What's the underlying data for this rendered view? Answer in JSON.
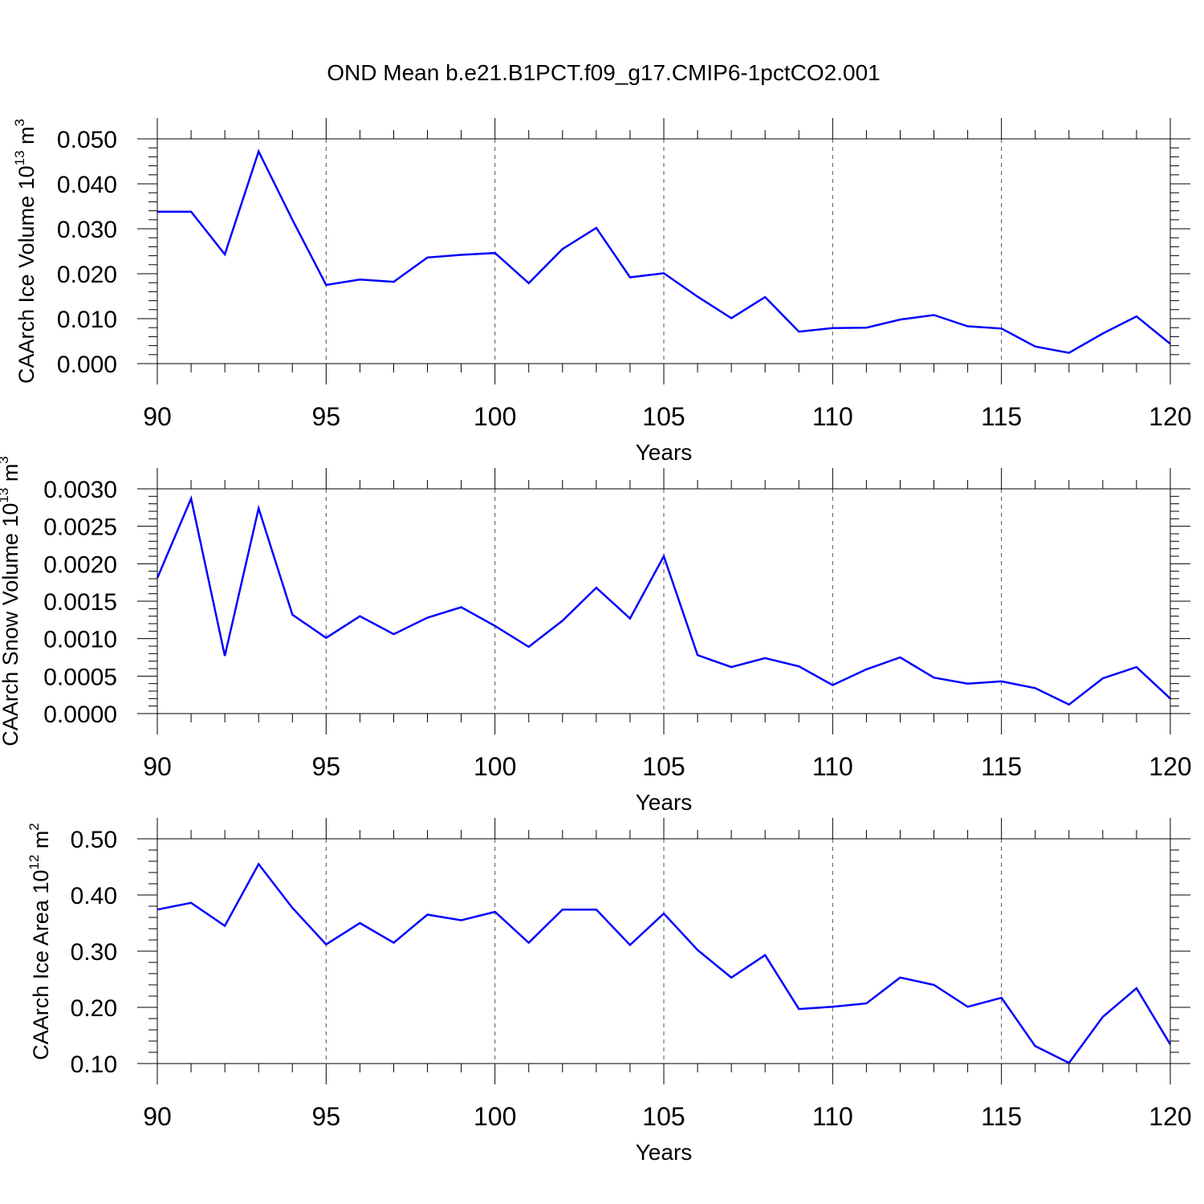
{
  "figure": {
    "title": "OND Mean b.e21.B1PCT.f09_g17.CMIP6-1pctCO2.001",
    "line_color": "#0000ff",
    "axis_color": "#000000",
    "grid_color": "#555555"
  },
  "chart_data": [
    {
      "type": "line",
      "ylabel": "CAArch Ice Volume 10",
      "ylabel_sup": "13",
      "ylabel_unit": " m",
      "ylabel_unit_sup": "3",
      "xlabel": "Years",
      "xlim": [
        90,
        120
      ],
      "ylim": [
        0,
        0.05
      ],
      "xticks": [
        90,
        95,
        100,
        105,
        110,
        115,
        120
      ],
      "xtick_labels": [
        "90",
        "95",
        "100",
        "105",
        "110",
        "115",
        "120"
      ],
      "yticks": [
        0,
        0.01,
        0.02,
        0.03,
        0.04,
        0.05
      ],
      "ytick_labels": [
        "0.000",
        "0.010",
        "0.020",
        "0.030",
        "0.040",
        "0.050"
      ],
      "x": [
        90,
        91,
        92,
        93,
        94,
        95,
        96,
        97,
        98,
        99,
        100,
        101,
        102,
        103,
        104,
        105,
        106,
        107,
        108,
        109,
        110,
        111,
        112,
        113,
        114,
        115,
        116,
        117,
        118,
        119,
        120
      ],
      "values": [
        0.0338,
        0.0338,
        0.0243,
        0.0472,
        0.032,
        0.0175,
        0.0187,
        0.0182,
        0.0236,
        0.0242,
        0.0246,
        0.0179,
        0.0255,
        0.0302,
        0.0192,
        0.0201,
        0.0149,
        0.0101,
        0.0148,
        0.0071,
        0.0079,
        0.008,
        0.0098,
        0.0108,
        0.0083,
        0.0078,
        0.0038,
        0.0024,
        0.0067,
        0.0105,
        0.0044
      ]
    },
    {
      "type": "line",
      "ylabel": "CAArch Snow Volume 10",
      "ylabel_sup": "13",
      "ylabel_unit": " m",
      "ylabel_unit_sup": "3",
      "xlabel": "Years",
      "xlim": [
        90,
        120
      ],
      "ylim": [
        0,
        0.003
      ],
      "xticks": [
        90,
        95,
        100,
        105,
        110,
        115,
        120
      ],
      "xtick_labels": [
        "90",
        "95",
        "100",
        "105",
        "110",
        "115",
        "120"
      ],
      "yticks": [
        0,
        0.0005,
        0.001,
        0.0015,
        0.002,
        0.0025,
        0.003
      ],
      "ytick_labels": [
        "0.0000",
        "0.0005",
        "0.0010",
        "0.0015",
        "0.0020",
        "0.0025",
        "0.0030"
      ],
      "x": [
        90,
        91,
        92,
        93,
        94,
        95,
        96,
        97,
        98,
        99,
        100,
        101,
        102,
        103,
        104,
        105,
        106,
        107,
        108,
        109,
        110,
        111,
        112,
        113,
        114,
        115,
        116,
        117,
        118,
        119,
        120
      ],
      "values": [
        0.00181,
        0.00287,
        0.00077,
        0.00274,
        0.00132,
        0.00101,
        0.0013,
        0.00106,
        0.00128,
        0.00142,
        0.00117,
        0.00089,
        0.00124,
        0.00168,
        0.00127,
        0.0021,
        0.00078,
        0.00062,
        0.00074,
        0.00063,
        0.00038,
        0.00059,
        0.00075,
        0.00048,
        0.0004,
        0.00043,
        0.00034,
        0.00012,
        0.00047,
        0.00062,
        0.0002
      ]
    },
    {
      "type": "line",
      "ylabel": "CAArch Ice Area 10",
      "ylabel_sup": "12",
      "ylabel_unit": " m",
      "ylabel_unit_sup": "2",
      "xlabel": "Years",
      "xlim": [
        90,
        120
      ],
      "ylim": [
        0.1,
        0.5
      ],
      "xticks": [
        90,
        95,
        100,
        105,
        110,
        115,
        120
      ],
      "xtick_labels": [
        "90",
        "95",
        "100",
        "105",
        "110",
        "115",
        "120"
      ],
      "yticks": [
        0.1,
        0.2,
        0.3,
        0.4,
        0.5
      ],
      "ytick_labels": [
        "0.10",
        "0.20",
        "0.30",
        "0.40",
        "0.50"
      ],
      "x": [
        90,
        91,
        92,
        93,
        94,
        95,
        96,
        97,
        98,
        99,
        100,
        101,
        102,
        103,
        104,
        105,
        106,
        107,
        108,
        109,
        110,
        111,
        112,
        113,
        114,
        115,
        116,
        117,
        118,
        119,
        120
      ],
      "values": [
        0.374,
        0.386,
        0.345,
        0.455,
        0.377,
        0.312,
        0.35,
        0.315,
        0.365,
        0.355,
        0.37,
        0.315,
        0.374,
        0.374,
        0.311,
        0.367,
        0.302,
        0.253,
        0.293,
        0.197,
        0.201,
        0.207,
        0.253,
        0.24,
        0.201,
        0.217,
        0.131,
        0.101,
        0.183,
        0.234,
        0.134
      ]
    }
  ]
}
